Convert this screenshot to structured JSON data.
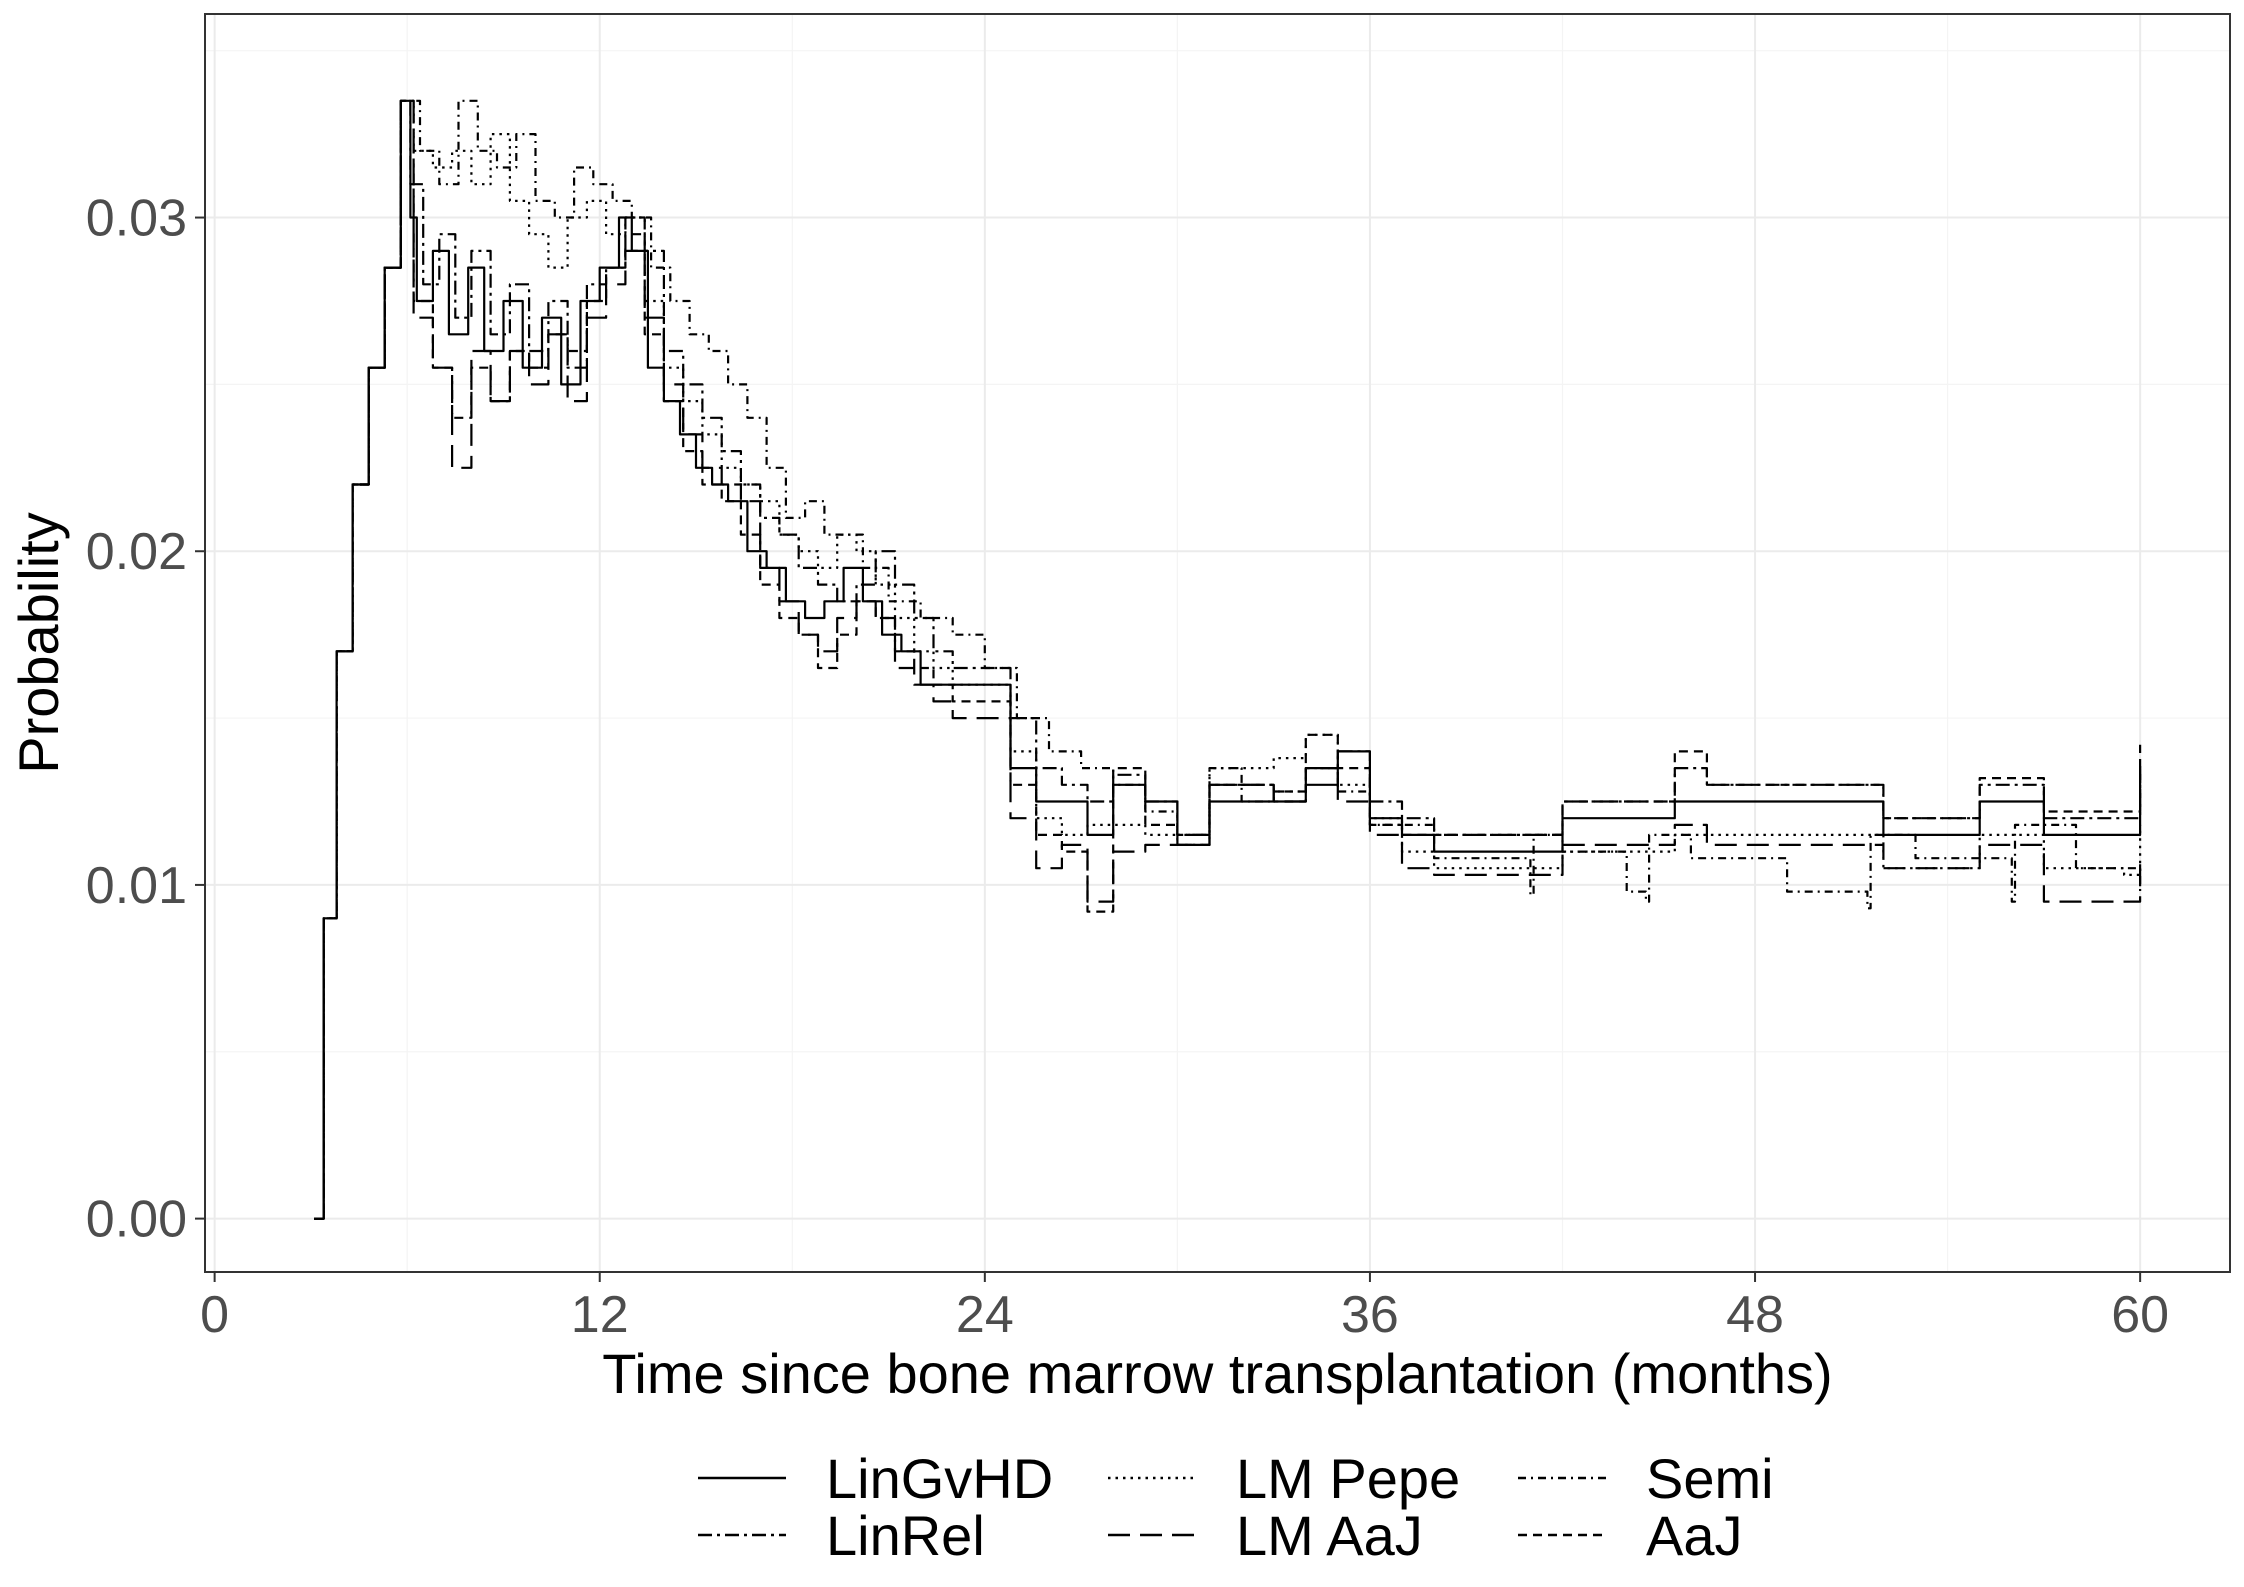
{
  "chart_data": {
    "type": "line",
    "title": "",
    "xlabel": "Time since bone marrow transplantation (months)",
    "ylabel": "Probability",
    "xlim": [
      -0.3,
      62.8
    ],
    "ylim": [
      -0.0016,
      0.0361
    ],
    "x_ticks": [
      0,
      12,
      24,
      36,
      48,
      60
    ],
    "x_tick_labels": [
      "0",
      "12",
      "24",
      "36",
      "48",
      "60"
    ],
    "y_ticks": [
      0.0,
      0.01,
      0.02,
      0.03
    ],
    "y_tick_labels": [
      "0.00",
      "0.01",
      "0.02",
      "0.03"
    ],
    "grid": true,
    "legend_position": "bottom",
    "line_color": "#000000",
    "series": [
      {
        "name": "LinGvHD",
        "dash": "solid",
        "x": [
          3.1,
          3.4,
          3.8,
          4.3,
          4.8,
          5.3,
          5.8,
          6.1,
          6.3,
          6.8,
          7.3,
          7.9,
          8.4,
          9.0,
          9.6,
          10.2,
          10.8,
          11.4,
          12.0,
          12.6,
          13.0,
          13.5,
          14.0,
          14.5,
          15.0,
          15.5,
          16.0,
          16.6,
          17.2,
          17.8,
          18.4,
          19.0,
          19.6,
          20.2,
          20.8,
          21.4,
          22.0,
          22.6,
          23.2,
          24.0,
          24.8,
          25.6,
          26.4,
          27.2,
          28.0,
          29.0,
          30.0,
          31.0,
          32.0,
          33.0,
          34.0,
          35.0,
          36.0,
          37.0,
          38.0,
          41.0,
          42.0,
          44.5,
          45.5,
          46.5,
          50.0,
          52.0,
          55.0,
          57.0,
          59.5,
          60.0
        ],
        "y": [
          0.0,
          0.009,
          0.017,
          0.022,
          0.0255,
          0.0285,
          0.0335,
          0.03,
          0.0275,
          0.029,
          0.0265,
          0.0285,
          0.026,
          0.0275,
          0.0255,
          0.027,
          0.025,
          0.0275,
          0.0285,
          0.03,
          0.029,
          0.0255,
          0.0245,
          0.0235,
          0.0225,
          0.022,
          0.0215,
          0.02,
          0.0195,
          0.0185,
          0.018,
          0.0185,
          0.0195,
          0.0185,
          0.0175,
          0.017,
          0.016,
          0.016,
          0.016,
          0.016,
          0.0135,
          0.0125,
          0.0125,
          0.0115,
          0.013,
          0.0125,
          0.0112,
          0.0125,
          0.0125,
          0.0125,
          0.013,
          0.014,
          0.012,
          0.0115,
          0.011,
          0.011,
          0.012,
          0.012,
          0.0125,
          0.0125,
          0.0125,
          0.0115,
          0.0125,
          0.0115,
          0.0115,
          0.0135
        ]
      },
      {
        "name": "LinRel",
        "dash": "dashdot",
        "x": [
          3.1,
          3.4,
          3.8,
          4.3,
          4.8,
          5.3,
          5.8,
          6.1,
          6.5,
          7.0,
          7.5,
          8.0,
          8.6,
          9.2,
          9.8,
          10.4,
          11.0,
          11.6,
          12.2,
          12.8,
          13.4,
          14.0,
          14.6,
          15.2,
          15.8,
          16.4,
          17.0,
          17.6,
          18.2,
          18.8,
          19.4,
          20.0,
          20.6,
          21.2,
          21.8,
          22.4,
          23.0,
          24.0,
          24.8,
          25.6,
          26.4,
          27.2,
          28.0,
          29.0,
          30.0,
          31.0,
          32.0,
          33.0,
          34.0,
          35.0,
          36.0,
          37.0,
          38.0,
          41.0,
          42.0,
          44.5,
          45.5,
          46.5,
          50.0,
          52.0,
          55.0,
          57.0,
          59.5,
          60.0
        ],
        "y": [
          0.0,
          0.009,
          0.017,
          0.022,
          0.0255,
          0.0285,
          0.0335,
          0.031,
          0.028,
          0.0295,
          0.027,
          0.029,
          0.0265,
          0.028,
          0.026,
          0.0275,
          0.0255,
          0.028,
          0.0285,
          0.03,
          0.029,
          0.026,
          0.025,
          0.024,
          0.023,
          0.022,
          0.021,
          0.0205,
          0.0195,
          0.019,
          0.0185,
          0.019,
          0.02,
          0.019,
          0.018,
          0.017,
          0.0165,
          0.0165,
          0.015,
          0.0135,
          0.013,
          0.0125,
          0.0133,
          0.0125,
          0.0115,
          0.013,
          0.013,
          0.0128,
          0.0135,
          0.014,
          0.0125,
          0.012,
          0.0115,
          0.0115,
          0.0125,
          0.0125,
          0.0135,
          0.013,
          0.013,
          0.012,
          0.013,
          0.012,
          0.012,
          0.0137
        ]
      },
      {
        "name": "LM Pepe",
        "dash": "dotted",
        "x": [
          3.1,
          3.4,
          3.8,
          4.3,
          4.8,
          5.3,
          5.8,
          6.2,
          6.8,
          7.4,
          8.0,
          8.6,
          9.2,
          9.8,
          10.4,
          11.0,
          11.6,
          12.2,
          12.8,
          13.4,
          14.0,
          14.6,
          15.2,
          15.8,
          16.4,
          17.0,
          17.6,
          18.2,
          18.8,
          19.4,
          20.0,
          20.6,
          21.2,
          21.8,
          22.4,
          23.0,
          24.0,
          24.8,
          25.6,
          26.4,
          27.2,
          28.0,
          29.0,
          30.0,
          31.0,
          32.0,
          33.0,
          34.0,
          35.0,
          36.0,
          37.0,
          38.0,
          41.0,
          42.0,
          44.5,
          45.5,
          46.5,
          50.0,
          52.0,
          55.0,
          57.0,
          59.5,
          60.0
        ],
        "y": [
          0.0,
          0.009,
          0.017,
          0.022,
          0.0255,
          0.0285,
          0.0335,
          0.032,
          0.0315,
          0.032,
          0.031,
          0.0325,
          0.0305,
          0.0295,
          0.0285,
          0.03,
          0.0305,
          0.0295,
          0.03,
          0.0275,
          0.0255,
          0.0245,
          0.0235,
          0.0225,
          0.022,
          0.0215,
          0.0205,
          0.02,
          0.0195,
          0.0205,
          0.02,
          0.019,
          0.018,
          0.017,
          0.0165,
          0.016,
          0.016,
          0.014,
          0.012,
          0.0115,
          0.0118,
          0.0118,
          0.0115,
          0.0112,
          0.0135,
          0.0135,
          0.0138,
          0.0145,
          0.013,
          0.012,
          0.011,
          0.0105,
          0.0105,
          0.011,
          0.011,
          0.0115,
          0.0115,
          0.0115,
          0.0105,
          0.0115,
          0.0105,
          0.0103,
          0.0118
        ]
      },
      {
        "name": "LM AaJ",
        "dash": "longdash",
        "x": [
          3.1,
          3.4,
          3.8,
          4.3,
          4.8,
          5.3,
          5.8,
          6.2,
          6.8,
          7.4,
          8.0,
          8.6,
          9.2,
          9.8,
          10.4,
          11.0,
          11.6,
          12.2,
          12.8,
          13.4,
          14.0,
          14.6,
          15.2,
          15.8,
          16.4,
          17.0,
          17.6,
          18.2,
          18.8,
          19.4,
          20.0,
          20.6,
          21.2,
          21.8,
          22.4,
          23.0,
          24.0,
          24.8,
          25.6,
          26.4,
          27.2,
          28.0,
          29.0,
          30.0,
          31.0,
          32.0,
          33.0,
          34.0,
          35.0,
          36.0,
          37.0,
          38.0,
          41.0,
          42.0,
          44.5,
          45.5,
          46.5,
          50.0,
          52.0,
          55.0,
          57.0,
          59.5,
          60.0
        ],
        "y": [
          0.0,
          0.009,
          0.017,
          0.022,
          0.0255,
          0.0285,
          0.0335,
          0.027,
          0.0255,
          0.0225,
          0.026,
          0.0245,
          0.026,
          0.025,
          0.0265,
          0.0245,
          0.027,
          0.028,
          0.029,
          0.027,
          0.025,
          0.0235,
          0.0225,
          0.022,
          0.0215,
          0.0195,
          0.0185,
          0.0175,
          0.017,
          0.018,
          0.0185,
          0.018,
          0.0165,
          0.016,
          0.0155,
          0.015,
          0.015,
          0.012,
          0.0105,
          0.0112,
          0.0095,
          0.011,
          0.0112,
          0.0112,
          0.013,
          0.013,
          0.0125,
          0.0135,
          0.0125,
          0.0115,
          0.0105,
          0.0103,
          0.0103,
          0.0112,
          0.0112,
          0.0118,
          0.0112,
          0.0112,
          0.0105,
          0.0112,
          0.0095,
          0.0095,
          0.0108
        ]
      },
      {
        "name": "Semi",
        "dash": "dashdot2",
        "x": [
          3.1,
          3.4,
          3.8,
          4.3,
          4.8,
          5.3,
          5.8,
          6.4,
          7.0,
          7.6,
          8.2,
          8.8,
          9.4,
          10.0,
          10.6,
          11.2,
          11.8,
          12.4,
          13.0,
          13.6,
          14.2,
          14.8,
          15.4,
          16.0,
          16.6,
          17.2,
          17.8,
          18.4,
          19.0,
          19.6,
          20.2,
          21.0,
          22.0,
          23.0,
          24.0,
          25.0,
          26.0,
          27.0,
          28.0,
          29.0,
          30.0,
          31.0,
          32.0,
          33.0,
          34.0,
          35.0,
          36.0,
          38.0,
          41.0,
          41.1,
          42.0,
          44.0,
          44.6,
          44.7,
          46.0,
          49.0,
          51.5,
          51.6,
          53.0,
          56.0,
          56.1,
          58.0,
          60.0
        ],
        "y": [
          0.0,
          0.009,
          0.017,
          0.022,
          0.0255,
          0.0285,
          0.0335,
          0.032,
          0.031,
          0.0335,
          0.032,
          0.0315,
          0.0325,
          0.0305,
          0.03,
          0.0315,
          0.031,
          0.0305,
          0.03,
          0.0285,
          0.0275,
          0.0265,
          0.026,
          0.025,
          0.024,
          0.0225,
          0.021,
          0.0215,
          0.0205,
          0.0205,
          0.0195,
          0.0185,
          0.018,
          0.0175,
          0.0165,
          0.015,
          0.014,
          0.0135,
          0.013,
          0.0122,
          0.0115,
          0.0135,
          0.0125,
          0.0128,
          0.0135,
          0.0128,
          0.0118,
          0.0108,
          0.0097,
          0.0115,
          0.011,
          0.0098,
          0.0095,
          0.0115,
          0.0108,
          0.0098,
          0.0093,
          0.0115,
          0.0108,
          0.0095,
          0.0118,
          0.0105,
          0.0097
        ]
      },
      {
        "name": "AaJ",
        "dash": "dashed",
        "x": [
          3.1,
          3.4,
          3.8,
          4.3,
          4.8,
          5.3,
          5.8,
          6.2,
          6.8,
          7.4,
          8.0,
          8.6,
          9.2,
          9.8,
          10.4,
          11.0,
          11.6,
          12.2,
          12.8,
          13.4,
          14.0,
          14.6,
          15.2,
          15.8,
          16.4,
          17.0,
          17.6,
          18.2,
          18.8,
          19.4,
          20.0,
          20.6,
          21.2,
          21.8,
          22.4,
          23.0,
          24.0,
          24.8,
          25.6,
          26.4,
          27.2,
          28.0,
          29.0,
          30.0,
          31.0,
          32.0,
          33.0,
          34.0,
          35.0,
          36.0,
          37.0,
          38.0,
          41.0,
          42.0,
          44.5,
          45.5,
          46.5,
          50.0,
          52.0,
          55.0,
          57.0,
          59.5,
          60.0
        ],
        "y": [
          0.0,
          0.009,
          0.017,
          0.022,
          0.0255,
          0.0285,
          0.0335,
          0.0275,
          0.0255,
          0.024,
          0.0255,
          0.0245,
          0.026,
          0.0255,
          0.0265,
          0.026,
          0.0275,
          0.0285,
          0.0295,
          0.0265,
          0.0245,
          0.023,
          0.022,
          0.0215,
          0.0205,
          0.019,
          0.018,
          0.0175,
          0.0165,
          0.0175,
          0.0185,
          0.018,
          0.017,
          0.0165,
          0.016,
          0.0155,
          0.0155,
          0.013,
          0.0115,
          0.011,
          0.0092,
          0.0135,
          0.0118,
          0.0115,
          0.013,
          0.013,
          0.0125,
          0.0145,
          0.0135,
          0.0118,
          0.0115,
          0.0115,
          0.0115,
          0.0125,
          0.0125,
          0.014,
          0.013,
          0.013,
          0.012,
          0.0132,
          0.0122,
          0.0122,
          0.0142
        ]
      }
    ]
  }
}
